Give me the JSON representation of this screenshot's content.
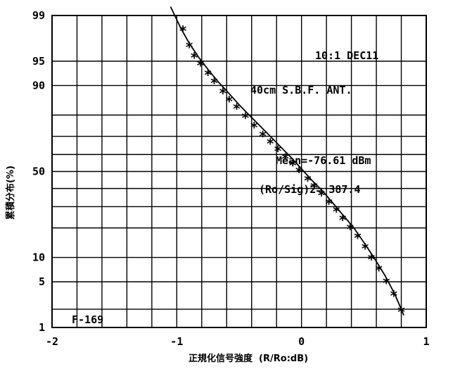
{
  "chart_data": {
    "type": "scatter",
    "title": "",
    "xlabel": "正規化信号強度  (R/Ro:dB)",
    "ylabel": "累積分布(%)",
    "xlim": [
      -2,
      1
    ],
    "ylim": [
      1,
      99
    ],
    "y_scale": "probability",
    "grid": true,
    "x_ticks": [
      {
        "value": -2,
        "label": "-2"
      },
      {
        "value": -1,
        "label": "-1"
      },
      {
        "value": 0,
        "label": "0"
      },
      {
        "value": 1,
        "label": "1"
      }
    ],
    "y_ticks": [
      {
        "value": 99,
        "label": "99"
      },
      {
        "value": 95,
        "label": "95"
      },
      {
        "value": 90,
        "label": "90"
      },
      {
        "value": 50,
        "label": "50"
      },
      {
        "value": 10,
        "label": "10"
      },
      {
        "value": 5,
        "label": "5"
      },
      {
        "value": 1,
        "label": "1"
      }
    ],
    "y_gridlines": [
      1,
      2,
      5,
      10,
      20,
      30,
      40,
      50,
      60,
      70,
      80,
      90,
      95,
      99
    ],
    "annotations": [
      {
        "id": "ratio",
        "text": "10:1  DEC11"
      },
      {
        "id": "antenna",
        "text": "40cm S.B.F. ANT."
      },
      {
        "id": "mean",
        "text": "Mean=-76.61 dBm"
      },
      {
        "id": "ro",
        "text": "(Ro/Sig)2= 387.4"
      },
      {
        "id": "figure",
        "text": "F-169"
      }
    ],
    "series": [
      {
        "marker": "*",
        "x": [
          -0.95,
          -0.9,
          -0.86,
          -0.81,
          -0.75,
          -0.7,
          -0.63,
          -0.58,
          -0.52,
          -0.45,
          -0.38,
          -0.31,
          -0.25,
          -0.19,
          -0.13,
          -0.07,
          -0.02,
          0.05,
          0.1,
          0.16,
          0.22,
          0.28,
          0.33,
          0.39,
          0.45,
          0.51,
          0.56,
          0.62,
          0.68,
          0.74,
          0.8
        ],
        "y": [
          98.2,
          96.8,
          95.5,
          94.3,
          92.5,
          90.6,
          87.8,
          85.2,
          82.5,
          78.8,
          74.5,
          70.0,
          66.0,
          62.0,
          57.5,
          53.5,
          49.5,
          44.5,
          40.5,
          36.0,
          31.5,
          27.5,
          23.5,
          19.5,
          16.0,
          12.5,
          9.5,
          7.0,
          4.8,
          3.2,
          1.8
        ]
      }
    ],
    "fit_line": {
      "x": [
        -1.05,
        -0.97,
        -0.9,
        -0.83,
        -0.75,
        -0.67,
        -0.58,
        -0.5,
        -0.42,
        -0.33,
        -0.25,
        -0.17,
        -0.08,
        0.0,
        0.08,
        0.17,
        0.25,
        0.33,
        0.42,
        0.5,
        0.58,
        0.67,
        0.75,
        0.82
      ],
      "y": [
        99.3,
        98.4,
        97.2,
        95.7,
        93.6,
        91.0,
        87.7,
        84.0,
        80.0,
        75.0,
        70.0,
        64.5,
        58.0,
        51.5,
        45.0,
        38.5,
        32.0,
        26.0,
        20.0,
        14.5,
        10.0,
        6.0,
        3.3,
        1.6
      ]
    }
  }
}
